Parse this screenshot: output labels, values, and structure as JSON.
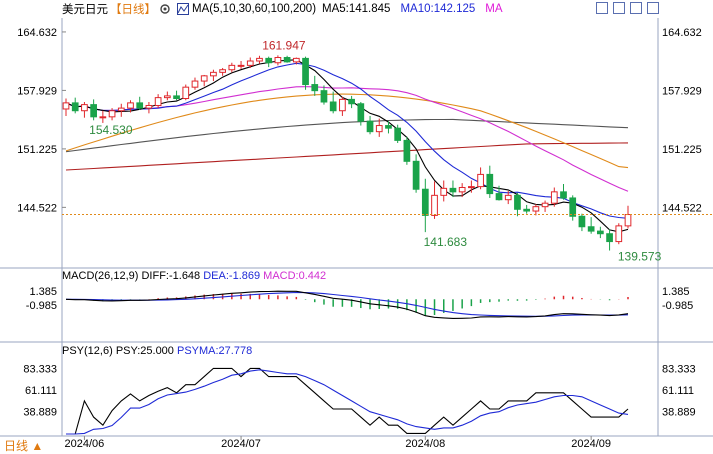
{
  "header": {
    "symbol": "美元日元",
    "period": "【日线】",
    "ma_label": "MA(5,10,30,60,100,200)",
    "ma5": "MA5:141.845",
    "ma10": "MA10:142.125",
    "ma30": "MA"
  },
  "colors": {
    "up": "#e0262b",
    "down": "#1aa34a",
    "ma5": "#000000",
    "ma10": "#1f2ad6",
    "ma30": "#d12fd1",
    "ma60": "#e08a1a",
    "ma100": "#b02020",
    "ma200": "#555555",
    "price_line": "#e08a1a",
    "dif": "#000000",
    "dea": "#1f2ad6",
    "psy": "#000000",
    "psyma": "#1f2ad6"
  },
  "chart_data": [
    {
      "type": "candlestick",
      "title": "美元日元",
      "y_ticks": [
        "164.632",
        "157.929",
        "151.225",
        "144.522"
      ],
      "ylim": [
        137.8,
        166.0
      ],
      "x_ticks": [
        "2024/06",
        "2024/07",
        "2024/08",
        "2024/09"
      ],
      "annotations": [
        {
          "label": "161.947",
          "value": 161.947
        },
        {
          "label": "154.530",
          "value": 154.53
        },
        {
          "label": "141.683",
          "value": 141.683
        },
        {
          "label": "139.573",
          "value": 139.573
        }
      ],
      "last_price": 143.7,
      "candles": [
        {
          "o": 155.8,
          "h": 157.0,
          "l": 155.0,
          "c": 156.5
        },
        {
          "o": 156.5,
          "h": 157.1,
          "l": 155.3,
          "c": 155.6
        },
        {
          "o": 155.6,
          "h": 156.6,
          "l": 154.8,
          "c": 156.3
        },
        {
          "o": 156.3,
          "h": 156.9,
          "l": 154.5,
          "c": 154.9
        },
        {
          "o": 154.9,
          "h": 155.6,
          "l": 154.2,
          "c": 154.9
        },
        {
          "o": 154.9,
          "h": 155.9,
          "l": 154.5,
          "c": 155.6
        },
        {
          "o": 155.6,
          "h": 156.4,
          "l": 154.9,
          "c": 155.9
        },
        {
          "o": 155.9,
          "h": 156.8,
          "l": 155.4,
          "c": 156.5
        },
        {
          "o": 156.5,
          "h": 157.2,
          "l": 155.7,
          "c": 155.9
        },
        {
          "o": 155.9,
          "h": 156.6,
          "l": 155.3,
          "c": 156.2
        },
        {
          "o": 156.2,
          "h": 157.5,
          "l": 155.9,
          "c": 157.1
        },
        {
          "o": 157.1,
          "h": 157.8,
          "l": 156.8,
          "c": 157.3
        },
        {
          "o": 157.3,
          "h": 157.9,
          "l": 156.8,
          "c": 157.0
        },
        {
          "o": 157.0,
          "h": 158.6,
          "l": 156.8,
          "c": 158.3
        },
        {
          "o": 158.3,
          "h": 159.4,
          "l": 158.0,
          "c": 159.0
        },
        {
          "o": 159.0,
          "h": 159.7,
          "l": 158.4,
          "c": 159.6
        },
        {
          "o": 159.6,
          "h": 160.3,
          "l": 159.0,
          "c": 160.0
        },
        {
          "o": 160.0,
          "h": 160.5,
          "l": 159.6,
          "c": 160.3
        },
        {
          "o": 160.3,
          "h": 161.1,
          "l": 160.0,
          "c": 160.8
        },
        {
          "o": 160.8,
          "h": 161.3,
          "l": 160.4,
          "c": 160.8
        },
        {
          "o": 160.8,
          "h": 161.7,
          "l": 160.5,
          "c": 161.3
        },
        {
          "o": 161.3,
          "h": 161.9,
          "l": 161.0,
          "c": 161.6
        },
        {
          "o": 161.6,
          "h": 161.8,
          "l": 160.6,
          "c": 161.1
        },
        {
          "o": 161.1,
          "h": 161.947,
          "l": 160.8,
          "c": 161.7
        },
        {
          "o": 161.7,
          "h": 161.9,
          "l": 161.1,
          "c": 161.2
        },
        {
          "o": 161.2,
          "h": 161.7,
          "l": 160.9,
          "c": 161.6
        },
        {
          "o": 161.6,
          "h": 161.8,
          "l": 158.0,
          "c": 158.6
        },
        {
          "o": 158.6,
          "h": 159.6,
          "l": 157.3,
          "c": 157.9
        },
        {
          "o": 157.9,
          "h": 158.5,
          "l": 156.3,
          "c": 156.6
        },
        {
          "o": 156.6,
          "h": 157.8,
          "l": 155.3,
          "c": 155.6
        },
        {
          "o": 155.6,
          "h": 157.2,
          "l": 155.0,
          "c": 156.9
        },
        {
          "o": 156.9,
          "h": 157.3,
          "l": 155.9,
          "c": 156.4
        },
        {
          "o": 156.4,
          "h": 156.6,
          "l": 153.9,
          "c": 154.4
        },
        {
          "o": 154.4,
          "h": 155.0,
          "l": 152.9,
          "c": 153.2
        },
        {
          "o": 153.2,
          "h": 154.7,
          "l": 152.6,
          "c": 153.9
        },
        {
          "o": 153.9,
          "h": 154.4,
          "l": 153.0,
          "c": 153.6
        },
        {
          "o": 153.6,
          "h": 154.0,
          "l": 151.9,
          "c": 152.2
        },
        {
          "o": 152.2,
          "h": 152.6,
          "l": 149.4,
          "c": 149.8
        },
        {
          "o": 149.8,
          "h": 150.6,
          "l": 146.2,
          "c": 146.6
        },
        {
          "o": 146.6,
          "h": 147.8,
          "l": 141.683,
          "c": 143.6
        },
        {
          "o": 143.6,
          "h": 147.5,
          "l": 143.2,
          "c": 145.9
        },
        {
          "o": 145.9,
          "h": 147.6,
          "l": 145.2,
          "c": 146.7
        },
        {
          "o": 146.7,
          "h": 147.6,
          "l": 145.7,
          "c": 146.3
        },
        {
          "o": 146.3,
          "h": 147.3,
          "l": 145.7,
          "c": 146.8
        },
        {
          "o": 146.8,
          "h": 147.6,
          "l": 146.2,
          "c": 146.9
        },
        {
          "o": 146.9,
          "h": 149.1,
          "l": 146.6,
          "c": 148.3
        },
        {
          "o": 148.3,
          "h": 149.3,
          "l": 145.6,
          "c": 146.1
        },
        {
          "o": 146.1,
          "h": 147.0,
          "l": 145.3,
          "c": 145.4
        },
        {
          "o": 145.4,
          "h": 146.4,
          "l": 144.9,
          "c": 145.9
        },
        {
          "o": 145.9,
          "h": 146.2,
          "l": 143.5,
          "c": 144.3
        },
        {
          "o": 144.3,
          "h": 144.8,
          "l": 143.8,
          "c": 144.1
        },
        {
          "o": 144.1,
          "h": 144.9,
          "l": 143.6,
          "c": 144.6
        },
        {
          "o": 144.6,
          "h": 145.3,
          "l": 144.0,
          "c": 145.0
        },
        {
          "o": 145.0,
          "h": 146.8,
          "l": 144.6,
          "c": 146.3
        },
        {
          "o": 146.3,
          "h": 147.2,
          "l": 145.4,
          "c": 145.6
        },
        {
          "o": 145.6,
          "h": 145.9,
          "l": 143.0,
          "c": 143.5
        },
        {
          "o": 143.5,
          "h": 143.8,
          "l": 141.8,
          "c": 142.3
        },
        {
          "o": 142.3,
          "h": 143.4,
          "l": 141.5,
          "c": 141.8
        },
        {
          "o": 141.8,
          "h": 142.3,
          "l": 141.0,
          "c": 141.5
        },
        {
          "o": 141.5,
          "h": 142.0,
          "l": 139.573,
          "c": 140.6
        },
        {
          "o": 140.6,
          "h": 142.7,
          "l": 140.3,
          "c": 142.4
        },
        {
          "o": 142.4,
          "h": 144.7,
          "l": 142.1,
          "c": 143.7
        }
      ]
    },
    {
      "type": "line",
      "title": "MACD(26,12,9)",
      "labels": {
        "dif": "DIFF:-1.648",
        "dea": "DEA:-1.869",
        "macd": "MACD:0.442"
      },
      "y_ticks": [
        "1.385",
        "-0.985"
      ],
      "ylim": [
        -6.6,
        2.6
      ]
    },
    {
      "type": "line",
      "title": "PSY(12,6)",
      "labels": {
        "psy": "PSY:25.000",
        "psyma": "PSYMA:27.778"
      },
      "y_ticks": [
        "83.333",
        "61.111",
        "38.889"
      ],
      "ylim": [
        16,
        92
      ]
    }
  ],
  "footer": {
    "tab_label": "日线 ▲"
  }
}
